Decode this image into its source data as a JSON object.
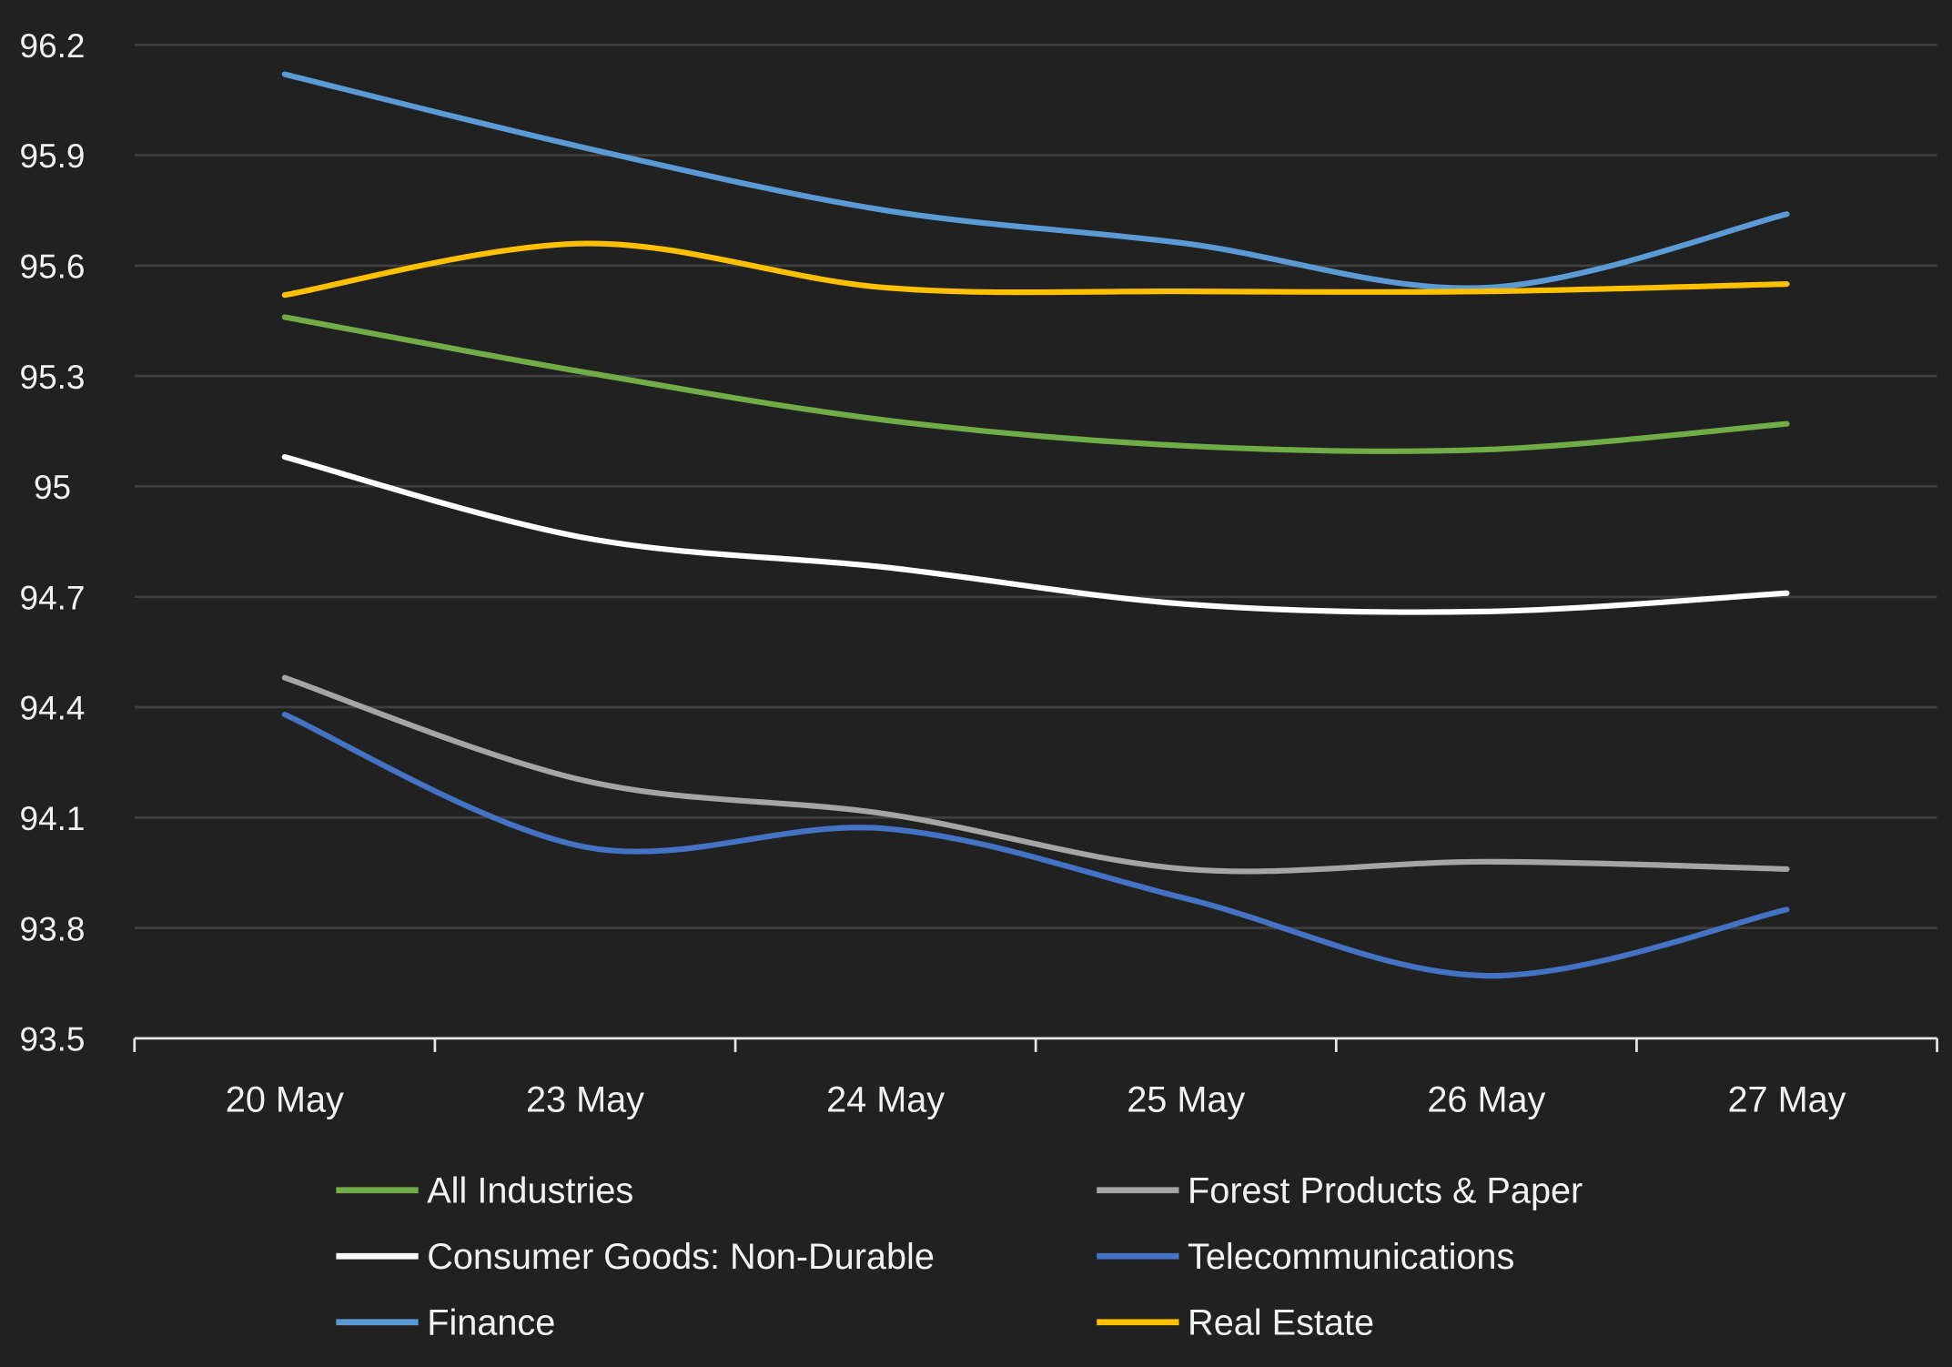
{
  "chart_data": {
    "type": "line",
    "title": "",
    "xlabel": "",
    "ylabel": "",
    "categories": [
      "20 May",
      "23 May",
      "24 May",
      "25 May",
      "26 May",
      "27 May"
    ],
    "ylim": [
      93.5,
      96.2
    ],
    "yticks": [
      "93.5",
      "93.8",
      "94.1",
      "94.4",
      "94.7",
      "95",
      "95.3",
      "95.6",
      "95.9",
      "96.2"
    ],
    "grid": true,
    "legend_position": "bottom",
    "series": [
      {
        "name": "All Industries",
        "color": "#70ad47",
        "values": [
          95.46,
          95.31,
          95.18,
          95.11,
          95.1,
          95.17
        ]
      },
      {
        "name": "Forest Products & Paper",
        "color": "#a5a5a5",
        "values": [
          94.48,
          94.2,
          94.11,
          93.96,
          93.98,
          93.96
        ]
      },
      {
        "name": "Consumer Goods: Non-Durable",
        "color": "#ffffff",
        "values": [
          95.08,
          94.86,
          94.78,
          94.68,
          94.66,
          94.71
        ]
      },
      {
        "name": "Telecommunications",
        "color": "#4472c4",
        "values": [
          94.38,
          94.02,
          94.07,
          93.88,
          93.67,
          93.85
        ]
      },
      {
        "name": "Finance",
        "color": "#5b9bd5",
        "values": [
          96.12,
          95.92,
          95.75,
          95.66,
          95.54,
          95.74
        ]
      },
      {
        "name": "Real Estate",
        "color": "#ffc000",
        "values": [
          95.52,
          95.66,
          95.54,
          95.53,
          95.53,
          95.55
        ]
      }
    ]
  }
}
